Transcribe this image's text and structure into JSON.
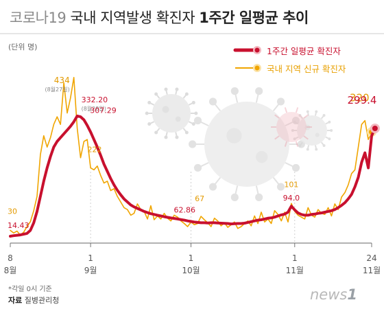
{
  "header": {
    "title_prefix": "코로나19",
    "title_main": "국내 지역발생 확진자",
    "title_bold": "1주간 일평균 추이"
  },
  "unit_label": "(단위 명)",
  "legend": {
    "avg": "1주간 일평균 확진자",
    "daily": "국내 지역 신규 확진자"
  },
  "footnote": "*각일 0시 기준",
  "source": {
    "label": "자료",
    "value": "질병관리청"
  },
  "logo": {
    "news": "news",
    "one": "1"
  },
  "colors": {
    "avg": "#c8102e",
    "daily": "#f0a500",
    "avg_label": "#c8102e",
    "daily_label": "#e39a00"
  },
  "chart_data": {
    "type": "line",
    "x_start_day": 0,
    "x_end_day": 108,
    "ylim": [
      0,
      450
    ],
    "grid": false,
    "legend_position": "top-right",
    "x_ticks": [
      {
        "day": 0,
        "top": "8",
        "bottom": "8월"
      },
      {
        "day": 24,
        "top": "1",
        "bottom": "9월"
      },
      {
        "day": 54,
        "top": "1",
        "bottom": "10월"
      },
      {
        "day": 85,
        "top": "1",
        "bottom": "11월"
      },
      {
        "day": 108,
        "top": "24",
        "bottom": "11월"
      }
    ],
    "series": [
      {
        "key": "daily",
        "name": "국내 지역 신규 확진자",
        "values": [
          30,
          23,
          28,
          18,
          25,
          40,
          53,
          82,
          120,
          230,
          280,
          250,
          275,
          310,
          330,
          310,
          420,
          340,
          380,
          434,
          300,
          222,
          265,
          270,
          195,
          190,
          200,
          175,
          155,
          160,
          135,
          140,
          120,
          105,
          90,
          85,
          70,
          75,
          100,
          85,
          80,
          60,
          95,
          58,
          68,
          60,
          75,
          62,
          55,
          70,
          65,
          55,
          48,
          40,
          52,
          45,
          48,
          67,
          58,
          50,
          40,
          62,
          55,
          42,
          50,
          38,
          45,
          52,
          35,
          40,
          48,
          55,
          42,
          68,
          48,
          78,
          52,
          60,
          48,
          82,
          72,
          55,
          78,
          52,
          101,
          80,
          70,
          65,
          60,
          90,
          70,
          65,
          85,
          75,
          72,
          90,
          68,
          100,
          85,
          118,
          130,
          150,
          180,
          190,
          250,
          310,
          320,
          270,
          290
        ]
      },
      {
        "key": "avg",
        "name": "1주간 일평균 확진자",
        "values": [
          14.43,
          16,
          17,
          18,
          20,
          22,
          30,
          50,
          80,
          120,
          160,
          195,
          225,
          250,
          265,
          275,
          285,
          295,
          305,
          317,
          332.2,
          330,
          322,
          307.29,
          290,
          270,
          250,
          228,
          205,
          186,
          167,
          150,
          136,
          124,
          113,
          105,
          97,
          92,
          88,
          84,
          80,
          77,
          74,
          72,
          70,
          68,
          66,
          64.5,
          62.86,
          61.5,
          60,
          58.5,
          57,
          55,
          53.5,
          52,
          51,
          50,
          50,
          49.5,
          50,
          50,
          49.5,
          49,
          48.5,
          48,
          47,
          47.5,
          48,
          48,
          49,
          51,
          53,
          55,
          57,
          58,
          60,
          62,
          63,
          65,
          68,
          71,
          73,
          78,
          94,
          84,
          76,
          72,
          70,
          70,
          72,
          73,
          75,
          76,
          78,
          80,
          82,
          85,
          90,
          96,
          103,
          113,
          125,
          145,
          170,
          210,
          235,
          195,
          280,
          299.4
        ]
      }
    ],
    "annotations": [
      {
        "series": "daily",
        "day": 0,
        "value": 30,
        "label": "30"
      },
      {
        "series": "avg",
        "day": 0,
        "value": 14.43,
        "label": "14.43"
      },
      {
        "series": "daily",
        "day": 19,
        "value": 434,
        "label": "434",
        "note": "(8월27일)"
      },
      {
        "series": "avg",
        "day": 20,
        "value": 332.2,
        "label": "332.20",
        "note": "(8월28일)"
      },
      {
        "series": "avg",
        "day": 23,
        "value": 307.29,
        "label": "307.29"
      },
      {
        "series": "daily",
        "day": 21,
        "value": 222,
        "label": "222"
      },
      {
        "series": "daily",
        "day": 57,
        "value": 67,
        "label": "67"
      },
      {
        "series": "avg",
        "day": 48,
        "value": 62.86,
        "label": "62.86"
      },
      {
        "series": "daily",
        "day": 84,
        "value": 101,
        "label": "101"
      },
      {
        "series": "avg",
        "day": 84,
        "value": 94.0,
        "label": "94.0"
      },
      {
        "series": "daily",
        "day": 106,
        "value": 320,
        "label": "320"
      },
      {
        "series": "avg",
        "day": 108,
        "value": 299.4,
        "label": "299.4"
      }
    ]
  }
}
